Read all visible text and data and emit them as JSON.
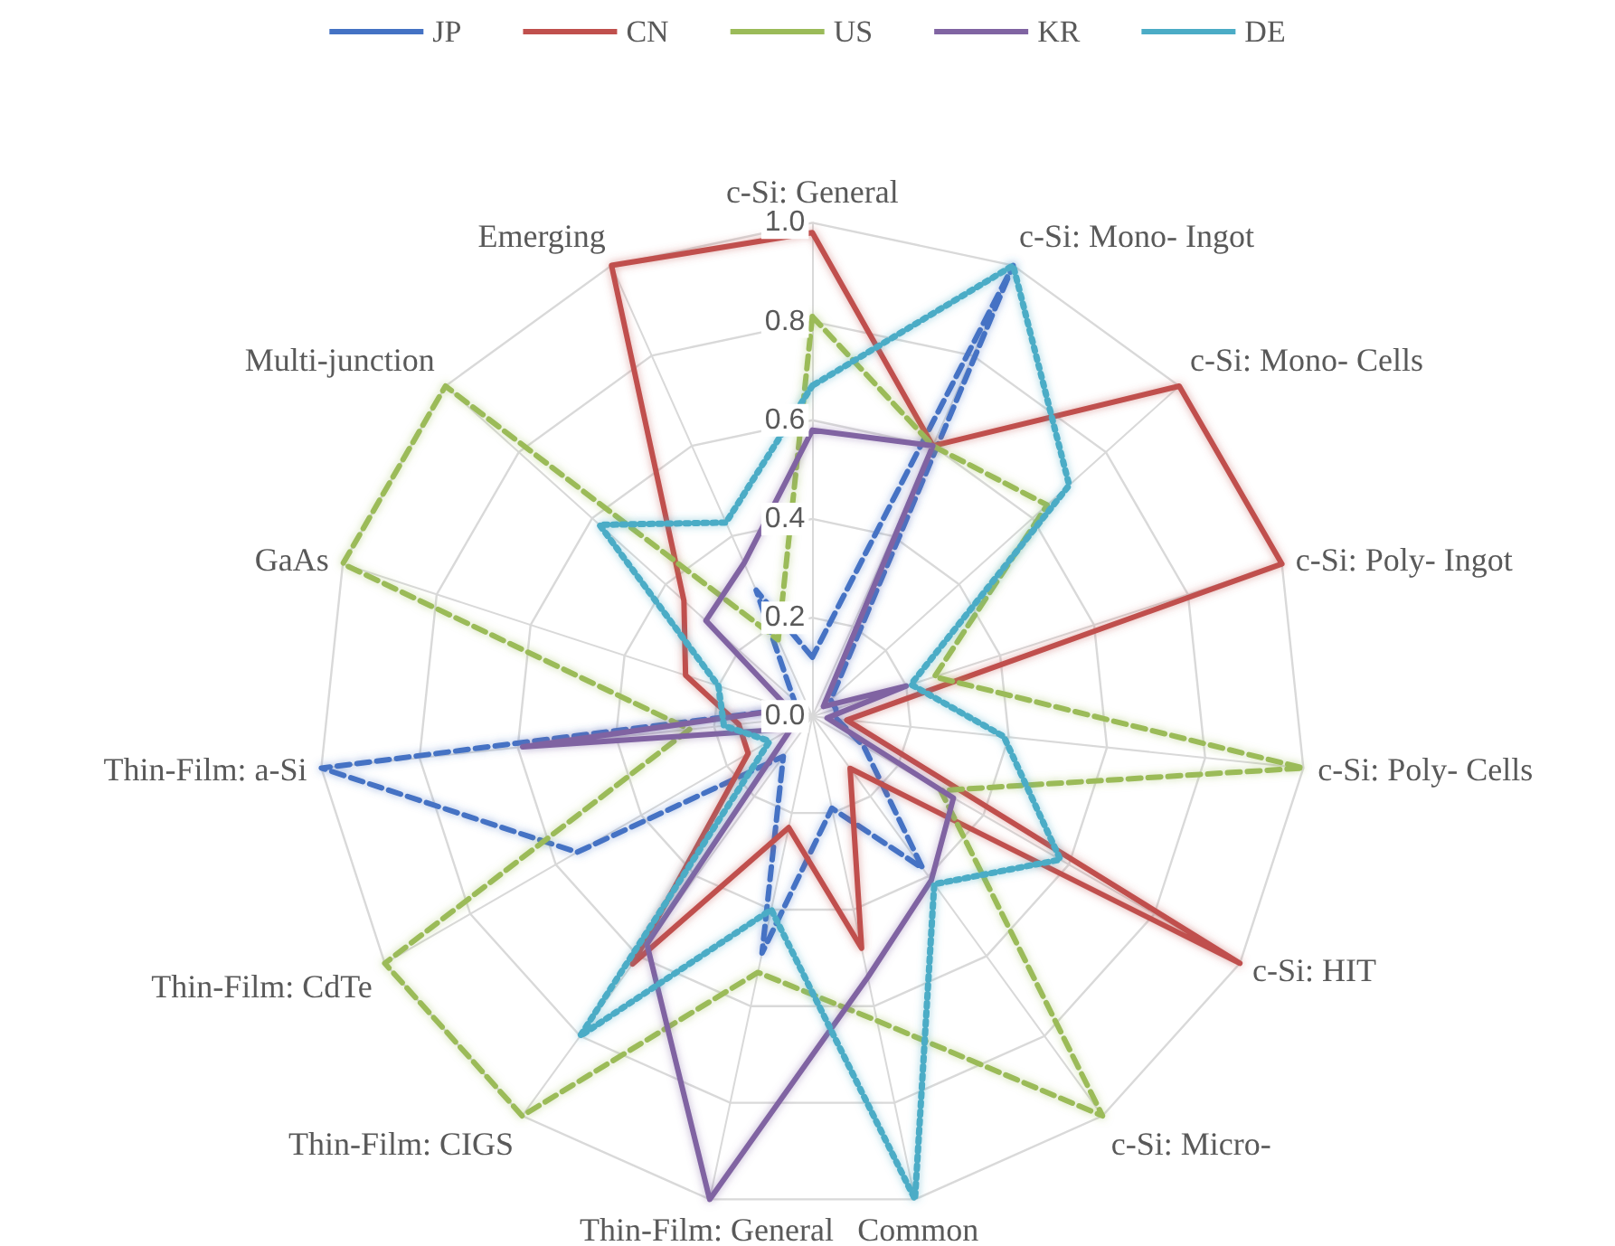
{
  "chart_data": {
    "type": "radar",
    "categories": [
      "c-Si: General",
      "c-Si: Mono- Ingot",
      "c-Si: Mono- Cells",
      "c-Si: Poly- Ingot",
      "c-Si: Poly- Cells",
      "c-Si: HIT",
      "c-Si: Micro-",
      "Common",
      "Thin-Film: General",
      "Thin-Film: CIGS",
      "Thin-Film: CdTe",
      "Thin-Film: a-Si",
      "GaAs",
      "Multi-junction",
      "Emerging"
    ],
    "series": [
      {
        "name": "JP",
        "color": "#4472c4",
        "line_style": "dashed",
        "values": [
          0.12,
          1.0,
          0.05,
          0.05,
          0.05,
          0.12,
          0.38,
          0.19,
          0.49,
          0.1,
          0.55,
          1.0,
          0.05,
          0.05,
          0.28
        ]
      },
      {
        "name": "CN",
        "color": "#c0504d",
        "line_style": "solid",
        "values": [
          0.98,
          0.6,
          1.0,
          1.0,
          0.07,
          1.0,
          0.13,
          0.48,
          0.23,
          0.62,
          0.15,
          0.15,
          0.27,
          0.35,
          1.0
        ]
      },
      {
        "name": "US",
        "color": "#9bbb59",
        "line_style": "dashed",
        "values": [
          0.81,
          0.6,
          0.64,
          0.26,
          1.0,
          0.3,
          1.0,
          0.63,
          0.53,
          1.0,
          1.0,
          0.25,
          1.0,
          1.0,
          0.17
        ]
      },
      {
        "name": "KR",
        "color": "#8064a2",
        "line_style": "solid",
        "values": [
          0.58,
          0.6,
          0.03,
          0.2,
          0.03,
          0.33,
          0.41,
          0.54,
          1.0,
          0.57,
          0.05,
          0.59,
          0.05,
          0.29,
          0.34
        ]
      },
      {
        "name": "DE",
        "color": "#4bacc6",
        "line_style": "dotted",
        "values": [
          0.67,
          1.0,
          0.7,
          0.21,
          0.39,
          0.58,
          0.42,
          1.0,
          0.4,
          0.8,
          0.1,
          0.18,
          0.2,
          0.58,
          0.43
        ]
      }
    ],
    "ylim": [
      0,
      1
    ],
    "yticks": [
      {
        "value": 0,
        "label": "0.0"
      },
      {
        "value": 0.2,
        "label": "0.2"
      },
      {
        "value": 0.4,
        "label": "0.4"
      },
      {
        "value": 0.6,
        "label": "0.6"
      },
      {
        "value": 0.8,
        "label": "0.8"
      },
      {
        "value": 1,
        "label": "1.0"
      }
    ],
    "legend": "top",
    "marker": "none"
  }
}
